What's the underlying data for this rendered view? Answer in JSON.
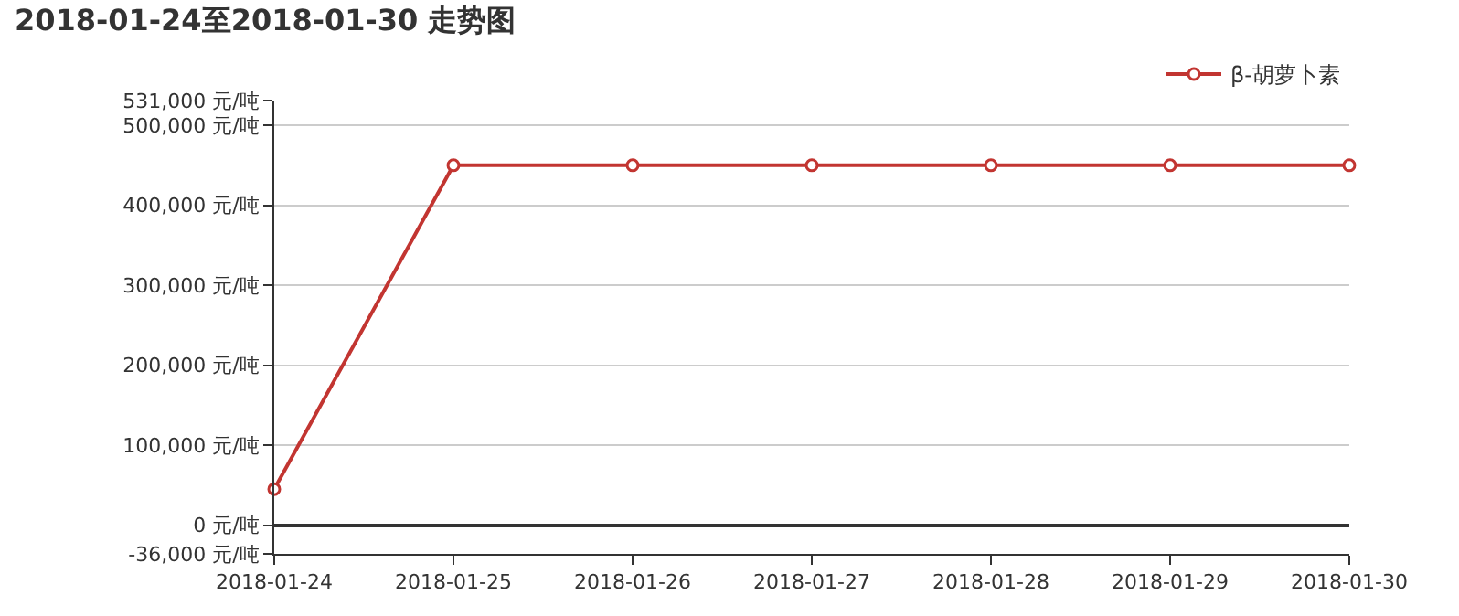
{
  "chart_data": {
    "type": "line",
    "title": "2018-01-24至2018-01-30 走势图",
    "categories": [
      "2018-01-24",
      "2018-01-25",
      "2018-01-26",
      "2018-01-27",
      "2018-01-28",
      "2018-01-29",
      "2018-01-30"
    ],
    "series": [
      {
        "name": "β-胡萝卜素",
        "color": "#c23531",
        "values": [
          45000,
          450000,
          450000,
          450000,
          450000,
          450000,
          450000
        ]
      }
    ],
    "ylim": [
      -36000,
      531000
    ],
    "yticks": [
      {
        "value": -36000,
        "label": "-36,000 元/吨"
      },
      {
        "value": 0,
        "label": "0 元/吨"
      },
      {
        "value": 100000,
        "label": "100,000 元/吨"
      },
      {
        "value": 200000,
        "label": "200,000 元/吨"
      },
      {
        "value": 300000,
        "label": "300,000 元/吨"
      },
      {
        "value": 400000,
        "label": "400,000 元/吨"
      },
      {
        "value": 500000,
        "label": "500,000 元/吨"
      },
      {
        "value": 531000,
        "label": "531,000 元/吨"
      }
    ],
    "grid": "y",
    "legend": "top right",
    "marker": "circle",
    "line_style": "solid"
  }
}
